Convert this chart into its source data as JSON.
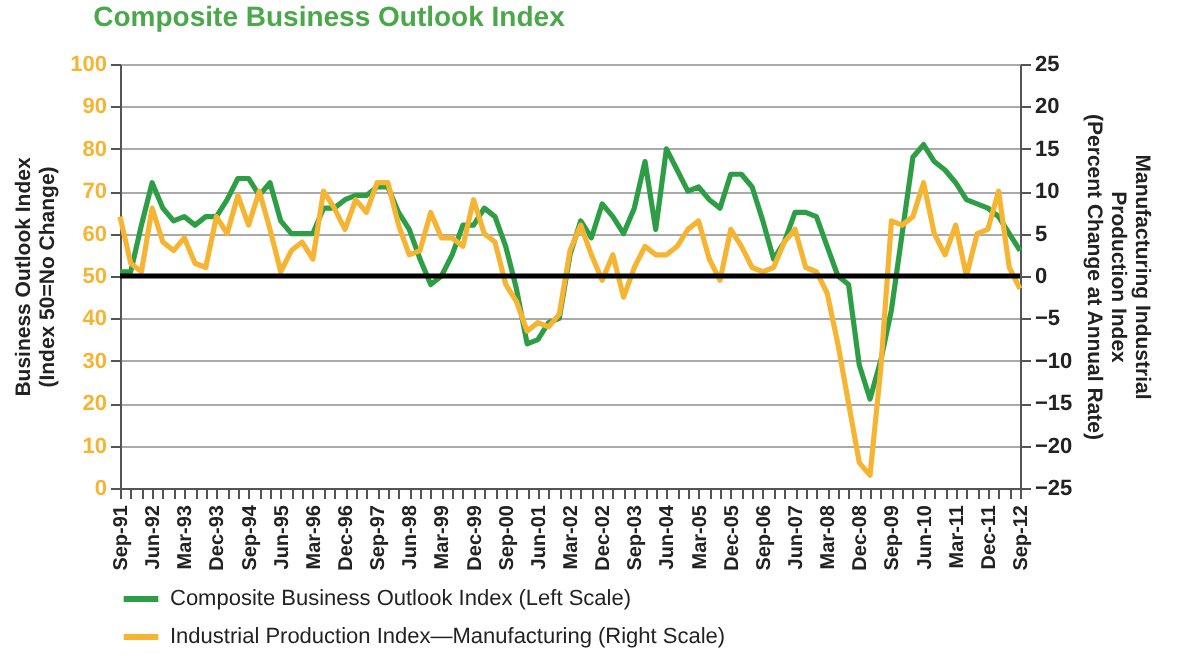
{
  "chart_data": {
    "type": "line",
    "title": "Composite Business Outlook Index",
    "ylabel": "Business Outlook Index\n(Index 50=No Change)",
    "y2label": "Manufacturing Industrial\nProduction Index\n(Percent Change at Annual Rate)",
    "categories": [
      "Sep-91",
      null,
      null,
      "Jun-92",
      null,
      null,
      "Mar-93",
      null,
      null,
      "Dec-93",
      null,
      null,
      "Sep-94",
      null,
      null,
      "Jun-95",
      null,
      null,
      "Mar-96",
      null,
      null,
      "Dec-96",
      null,
      null,
      "Sep-97",
      null,
      null,
      "Jun-98",
      null,
      null,
      "Mar-99",
      null,
      null,
      "Dec-99",
      null,
      null,
      "Sep-00",
      null,
      null,
      "Jun-01",
      null,
      null,
      "Mar-02",
      null,
      null,
      "Dec-02",
      null,
      null,
      "Sep-03",
      null,
      null,
      "Jun-04",
      null,
      null,
      "Mar-05",
      null,
      null,
      "Dec-05",
      null,
      null,
      "Sep-06",
      null,
      null,
      "Jun-07",
      null,
      null,
      "Mar-08",
      null,
      null,
      "Dec-08",
      null,
      null,
      "Sep-09",
      null,
      null,
      "Jun-10",
      null,
      null,
      "Mar-11",
      null,
      null,
      "Dec-11",
      null,
      null,
      "Sep-12"
    ],
    "series": [
      {
        "name": "Composite Business Outlook Index (Left Scale)",
        "color": "#2e9e46",
        "values": [
          51,
          51,
          62,
          72,
          66,
          63,
          64,
          62,
          64,
          64,
          68,
          73,
          73,
          69,
          72,
          63,
          60,
          60,
          60,
          66,
          66,
          68,
          69,
          69,
          71,
          71,
          65,
          61,
          54,
          48,
          50,
          55,
          62,
          62,
          66,
          64,
          57,
          47,
          34,
          35,
          39,
          40,
          55,
          63,
          59,
          67,
          64,
          60,
          66,
          77,
          61,
          80,
          75,
          70,
          71,
          68,
          66,
          74,
          74,
          71,
          63,
          54,
          58,
          65,
          65,
          64,
          57,
          50,
          48,
          29,
          21,
          30,
          42,
          60,
          78,
          81,
          77,
          75,
          72,
          68,
          67,
          66,
          64,
          60,
          56
        ]
      },
      {
        "name": "Industrial Production Index—Manufacturing (Right Scale)",
        "color": "#f5b533",
        "axis": "y2",
        "values": [
          7,
          1.5,
          0.5,
          8,
          4,
          3,
          4.5,
          1.5,
          1,
          7,
          5,
          9.5,
          6,
          10,
          5.5,
          0.5,
          3,
          4,
          2,
          10,
          8,
          5.5,
          9,
          7.5,
          11,
          11,
          6,
          2.5,
          3,
          7.5,
          4.5,
          4.5,
          3.5,
          9,
          5,
          4,
          -1,
          -3,
          -6.5,
          -5.5,
          -6,
          -4.5,
          3,
          6,
          2.5,
          -0.5,
          2.5,
          -2.5,
          1,
          3.5,
          2.5,
          2.5,
          3.5,
          5.5,
          6.5,
          2,
          -0.5,
          5.5,
          3.5,
          1,
          0.5,
          1,
          4,
          5.5,
          1,
          0.5,
          -2,
          -8,
          -15,
          -22,
          -23.5,
          -11,
          6.5,
          6,
          7,
          11,
          5,
          2.5,
          6,
          0,
          5,
          5.5,
          10,
          1,
          -1.5
        ]
      }
    ],
    "ylim": [
      0,
      100
    ],
    "yticks": [
      0,
      10,
      20,
      30,
      40,
      50,
      60,
      70,
      80,
      90,
      100
    ],
    "y2lim": [
      -25,
      25
    ],
    "y2ticks": [
      -25,
      -20,
      -15,
      -10,
      -5,
      0,
      5,
      10,
      15,
      20,
      25
    ],
    "ref_lines": [
      {
        "axis": "y",
        "value": 50,
        "color": "#000000"
      }
    ],
    "grid": "y",
    "legend": "bottom"
  }
}
